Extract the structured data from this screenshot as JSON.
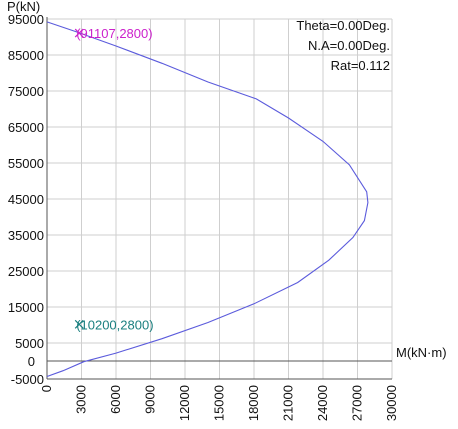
{
  "chart_data": {
    "type": "line",
    "xlabel": "M(kN·m)",
    "ylabel": "P(kN)",
    "xlim": [
      0,
      30000
    ],
    "ylim": [
      -5000,
      95000
    ],
    "x_ticks": [
      "0",
      "3000",
      "6000",
      "9000",
      "12000",
      "15000",
      "18000",
      "21000",
      "24000",
      "27000",
      "30000"
    ],
    "y_ticks": [
      "95000",
      "85000",
      "75000",
      "65000",
      "55000",
      "45000",
      "35000",
      "25000",
      "15000",
      "5000",
      "-5000"
    ],
    "zero_label_y": "0",
    "grid": true,
    "series": [
      {
        "color": "#5b5bdc",
        "points": [
          [
            0,
            94200
          ],
          [
            2500,
            91500
          ],
          [
            6000,
            87500
          ],
          [
            10000,
            82700
          ],
          [
            14000,
            77500
          ],
          [
            18200,
            72800
          ],
          [
            21000,
            67500
          ],
          [
            24000,
            61000
          ],
          [
            26300,
            54500
          ],
          [
            27800,
            47000
          ],
          [
            27900,
            44000
          ],
          [
            27600,
            39000
          ],
          [
            26600,
            34300
          ],
          [
            24500,
            28000
          ],
          [
            21800,
            21800
          ],
          [
            18000,
            15900
          ],
          [
            14000,
            10700
          ],
          [
            10000,
            6200
          ],
          [
            6000,
            2200
          ],
          [
            3200,
            -200
          ],
          [
            1400,
            -2700
          ],
          [
            0,
            -4300
          ]
        ]
      }
    ],
    "annotations": {
      "top_point": {
        "text": "(91107,2800)",
        "x": 2800,
        "y": 91107,
        "color": "#cc22cc"
      },
      "bottom_point": {
        "text": "(10200,2800)",
        "x": 2800,
        "y": 10200,
        "color": "#1a7f7f"
      },
      "info_lines": [
        "Theta=0.00Deg.",
        "N.A=0.00Deg.",
        "Rat=0.112"
      ]
    }
  }
}
